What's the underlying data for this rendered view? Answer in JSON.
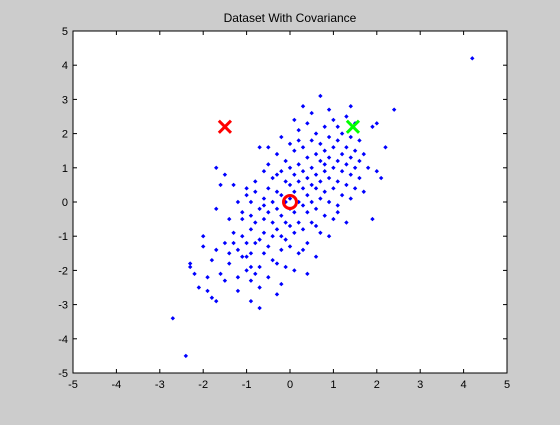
{
  "window": {
    "background": "#cccccc",
    "axes_background": "#ffffff"
  },
  "chart_data": {
    "type": "scatter",
    "title": "Dataset With Covariance",
    "xlabel": "",
    "ylabel": "",
    "xlim": [
      -5,
      5
    ],
    "ylim": [
      -5,
      5
    ],
    "xticks": [
      -5,
      -4,
      -3,
      -2,
      -1,
      0,
      1,
      2,
      3,
      4,
      5
    ],
    "yticks": [
      -5,
      -4,
      -3,
      -2,
      -1,
      0,
      1,
      2,
      3,
      4,
      5
    ],
    "xtick_labels": [
      "-5",
      "-4",
      "-3",
      "-2",
      "-1",
      "0",
      "1",
      "2",
      "3",
      "4",
      "5"
    ],
    "ytick_labels": [
      "-5",
      "-4",
      "-3",
      "-2",
      "-1",
      "0",
      "1",
      "2",
      "3",
      "4",
      "5"
    ],
    "grid": false,
    "colors": {
      "points": "#0000ff",
      "red_marker": "#ff0000",
      "green_marker": "#00ff00",
      "axis": "#000000"
    },
    "points": [
      [
        4.2,
        4.2
      ],
      [
        -2.7,
        -3.4
      ],
      [
        -2.4,
        -4.5
      ],
      [
        -2.3,
        -1.8
      ],
      [
        -2.3,
        -1.9
      ],
      [
        -2.2,
        -2.1
      ],
      [
        -2.1,
        -2.5
      ],
      [
        -2.0,
        -1.3
      ],
      [
        -2.0,
        -1.0
      ],
      [
        -1.9,
        -2.6
      ],
      [
        -1.9,
        -2.2
      ],
      [
        -1.8,
        -1.7
      ],
      [
        -1.7,
        -1.4
      ],
      [
        -1.7,
        -2.9
      ],
      [
        -1.7,
        1.0
      ],
      [
        -1.7,
        -0.2
      ],
      [
        -1.6,
        0.5
      ],
      [
        -1.6,
        -2.1
      ],
      [
        -1.5,
        0.8
      ],
      [
        -1.5,
        -2.3
      ],
      [
        -1.4,
        -1.8
      ],
      [
        -1.4,
        -1.5
      ],
      [
        -1.3,
        -0.9
      ],
      [
        -1.3,
        -1.2
      ],
      [
        -1.3,
        0.5
      ],
      [
        -1.2,
        -2.6
      ],
      [
        -1.2,
        -2.2
      ],
      [
        -1.2,
        -1.4
      ],
      [
        -1.1,
        -1.6
      ],
      [
        -1.1,
        -1.0
      ],
      [
        -1.1,
        -0.5
      ],
      [
        -1.1,
        -0.3
      ],
      [
        -1.0,
        -2.0
      ],
      [
        -1.0,
        -1.6
      ],
      [
        -1.0,
        -1.2
      ],
      [
        -1.0,
        0.2
      ],
      [
        -1.0,
        0.4
      ],
      [
        -0.9,
        -2.9
      ],
      [
        -0.9,
        -2.3
      ],
      [
        -0.9,
        -1.5
      ],
      [
        -0.9,
        -0.8
      ],
      [
        -0.9,
        -0.4
      ],
      [
        -0.9,
        0.0
      ],
      [
        -0.8,
        -2.1
      ],
      [
        -0.8,
        -1.2
      ],
      [
        -0.8,
        -0.6
      ],
      [
        -0.8,
        0.3
      ],
      [
        -0.8,
        0.6
      ],
      [
        -0.7,
        -3.1
      ],
      [
        -0.7,
        -2.5
      ],
      [
        -0.7,
        -1.9
      ],
      [
        -0.7,
        -1.1
      ],
      [
        -0.7,
        -0.2
      ],
      [
        -0.7,
        1.6
      ],
      [
        -0.6,
        -1.5
      ],
      [
        -0.6,
        -0.9
      ],
      [
        -0.6,
        -0.5
      ],
      [
        -0.6,
        0.1
      ],
      [
        -0.6,
        0.9
      ],
      [
        -0.5,
        -2.2
      ],
      [
        -0.5,
        -1.3
      ],
      [
        -0.5,
        -0.3
      ],
      [
        -0.5,
        0.4
      ],
      [
        -0.5,
        1.1
      ],
      [
        -0.4,
        -1.7
      ],
      [
        -0.4,
        -1.0
      ],
      [
        -0.4,
        -0.6
      ],
      [
        -0.4,
        0.0
      ],
      [
        -0.4,
        0.7
      ],
      [
        -0.3,
        -2.7
      ],
      [
        -0.3,
        -1.8
      ],
      [
        -0.3,
        -0.8
      ],
      [
        -0.3,
        -0.2
      ],
      [
        -0.3,
        0.3
      ],
      [
        -0.3,
        1.4
      ],
      [
        -0.2,
        -2.4
      ],
      [
        -0.2,
        -1.4
      ],
      [
        -0.2,
        -0.4
      ],
      [
        -0.2,
        0.2
      ],
      [
        -0.2,
        0.9
      ],
      [
        -0.2,
        1.9
      ],
      [
        -0.1,
        -1.9
      ],
      [
        -0.1,
        -1.1
      ],
      [
        -0.1,
        -0.6
      ],
      [
        -0.1,
        0.0
      ],
      [
        -0.1,
        0.6
      ],
      [
        -0.1,
        1.2
      ],
      [
        0.0,
        -1.3
      ],
      [
        0.0,
        -0.7
      ],
      [
        0.0,
        0.1
      ],
      [
        0.0,
        0.5
      ],
      [
        0.0,
        1.0
      ],
      [
        0.0,
        1.7
      ],
      [
        0.1,
        -2.0
      ],
      [
        0.1,
        -0.9
      ],
      [
        0.1,
        -0.3
      ],
      [
        0.1,
        0.3
      ],
      [
        0.1,
        0.8
      ],
      [
        0.1,
        1.5
      ],
      [
        0.1,
        2.4
      ],
      [
        0.2,
        -1.5
      ],
      [
        0.2,
        -0.6
      ],
      [
        0.2,
        0.0
      ],
      [
        0.2,
        0.6
      ],
      [
        0.2,
        1.1
      ],
      [
        0.2,
        2.1
      ],
      [
        0.3,
        -0.8
      ],
      [
        0.3,
        -0.1
      ],
      [
        0.3,
        0.4
      ],
      [
        0.3,
        0.9
      ],
      [
        0.3,
        1.6
      ],
      [
        0.3,
        2.8
      ],
      [
        0.4,
        -1.2
      ],
      [
        0.4,
        -0.3
      ],
      [
        0.4,
        0.2
      ],
      [
        0.4,
        0.7
      ],
      [
        0.4,
        1.3
      ],
      [
        0.4,
        2.3
      ],
      [
        0.5,
        -0.6
      ],
      [
        0.5,
        0.0
      ],
      [
        0.5,
        0.5
      ],
      [
        0.5,
        1.0
      ],
      [
        0.5,
        1.8
      ],
      [
        0.5,
        2.6
      ],
      [
        0.6,
        -1.6
      ],
      [
        0.6,
        -0.2
      ],
      [
        0.6,
        0.4
      ],
      [
        0.6,
        0.8
      ],
      [
        0.6,
        1.4
      ],
      [
        0.6,
        2.0
      ],
      [
        0.7,
        -0.9
      ],
      [
        0.7,
        0.1
      ],
      [
        0.7,
        0.6
      ],
      [
        0.7,
        1.2
      ],
      [
        0.7,
        1.7
      ],
      [
        0.7,
        3.1
      ],
      [
        0.8,
        -0.4
      ],
      [
        0.8,
        0.3
      ],
      [
        0.8,
        0.9
      ],
      [
        0.8,
        1.5
      ],
      [
        0.8,
        2.2
      ],
      [
        0.9,
        -1.0
      ],
      [
        0.9,
        0.0
      ],
      [
        0.9,
        0.7
      ],
      [
        0.9,
        1.3
      ],
      [
        0.9,
        1.9
      ],
      [
        0.9,
        2.7
      ],
      [
        1.0,
        -0.5
      ],
      [
        1.0,
        0.4
      ],
      [
        1.0,
        1.0
      ],
      [
        1.0,
        1.6
      ],
      [
        1.0,
        2.4
      ],
      [
        1.1,
        -0.1
      ],
      [
        1.1,
        0.6
      ],
      [
        1.1,
        1.2
      ],
      [
        1.1,
        1.8
      ],
      [
        1.1,
        2.2
      ],
      [
        1.2,
        0.2
      ],
      [
        1.2,
        0.9
      ],
      [
        1.2,
        1.4
      ],
      [
        1.2,
        2.0
      ],
      [
        1.3,
        -0.6
      ],
      [
        1.3,
        0.5
      ],
      [
        1.3,
        1.1
      ],
      [
        1.3,
        1.6
      ],
      [
        1.3,
        2.5
      ],
      [
        1.4,
        0.1
      ],
      [
        1.4,
        0.8
      ],
      [
        1.4,
        1.3
      ],
      [
        1.4,
        1.9
      ],
      [
        1.4,
        2.8
      ],
      [
        1.5,
        0.4
      ],
      [
        1.5,
        1.0
      ],
      [
        1.5,
        1.5
      ],
      [
        1.5,
        2.3
      ],
      [
        1.6,
        0.7
      ],
      [
        1.6,
        1.2
      ],
      [
        1.6,
        1.8
      ],
      [
        1.7,
        0.3
      ],
      [
        1.7,
        1.4
      ],
      [
        1.8,
        1.0
      ],
      [
        1.9,
        -0.5
      ],
      [
        1.9,
        2.2
      ],
      [
        2.0,
        0.9
      ],
      [
        2.0,
        2.3
      ],
      [
        2.1,
        0.7
      ],
      [
        2.2,
        1.6
      ],
      [
        2.4,
        2.7
      ],
      [
        -0.6,
        -0.1
      ],
      [
        -0.2,
        -1.0
      ],
      [
        0.3,
        -1.4
      ],
      [
        0.0,
        -0.2
      ],
      [
        -1.2,
        0.0
      ],
      [
        -1.4,
        -0.5
      ],
      [
        -0.9,
        -1.9
      ],
      [
        0.6,
        -0.7
      ],
      [
        1.1,
        -0.3
      ],
      [
        -0.5,
        1.6
      ],
      [
        0.2,
        1.8
      ],
      [
        0.8,
        1.1
      ],
      [
        -1.5,
        -1.2
      ],
      [
        -1.8,
        -2.8
      ],
      [
        0.4,
        -2.1
      ],
      [
        -0.3,
        0.8
      ]
    ],
    "special_markers": [
      {
        "shape": "x",
        "x": -1.5,
        "y": 2.2,
        "color": "#ff0000"
      },
      {
        "shape": "x",
        "x": 1.45,
        "y": 2.2,
        "color": "#00ff00"
      },
      {
        "shape": "circle",
        "x": 0.0,
        "y": 0.0,
        "color": "#ff0000"
      }
    ]
  }
}
